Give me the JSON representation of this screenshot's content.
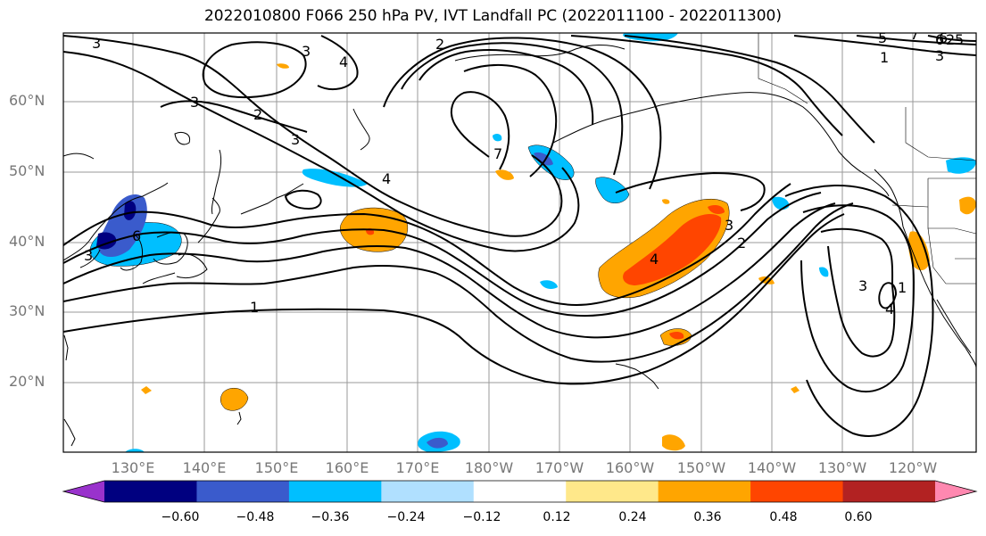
{
  "title": "2022010800 F066 250 hPa PV, IVT Landfall PC (2022011100 - 2022011300)",
  "lat_labels": [
    "60°N",
    "50°N",
    "40°N",
    "30°N",
    "20°N"
  ],
  "lon_labels": [
    "130°E",
    "140°E",
    "150°E",
    "160°E",
    "170°E",
    "180°W",
    "170°W",
    "160°W",
    "150°W",
    "140°W",
    "130°W",
    "120°W"
  ],
  "colorbar": {
    "colors": [
      "#9932cc",
      "#000080",
      "#3a5bcc",
      "#00bfff",
      "#b0e0ff",
      "#ffffff",
      "#ffe88a",
      "#ffa500",
      "#ff4500",
      "#b22222",
      "#ff88b0"
    ],
    "ticks": [
      "−0.60",
      "−0.48",
      "−0.36",
      "−0.24",
      "−0.12",
      "0.12",
      "0.24",
      "0.36",
      "0.48",
      "0.60"
    ]
  },
  "contour_labels": [
    "3",
    "3",
    "4",
    "2",
    "3",
    "2",
    "3",
    "4",
    "1",
    "3",
    "6",
    "7",
    "2",
    "3",
    "4",
    "5",
    "6",
    "7",
    "1",
    "2",
    "3",
    "5",
    "6",
    "3",
    "4",
    "1"
  ]
}
